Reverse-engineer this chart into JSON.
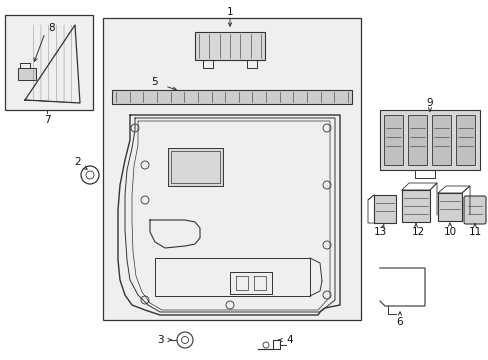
{
  "bg_color": "#ffffff",
  "fig_width": 4.89,
  "fig_height": 3.6,
  "dpi": 100,
  "line_color": "#333333",
  "label_fontsize": 7.5,
  "panel_bg": "#e8e8e8",
  "box_bg": "#eeeeee"
}
